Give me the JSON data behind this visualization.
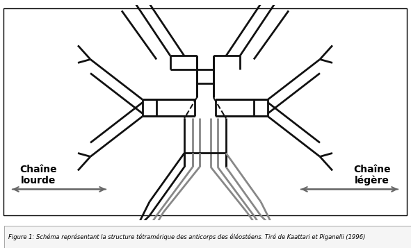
{
  "caption": "Figure 1: Schéma représentant la structure tétramérique des anticorps des éléostéens. Tiré de Kaattari et Piganelli (1996)",
  "label_left": "Chaîne\nlourde",
  "label_right": "Chaîne\nlégère",
  "line_color": "#111111",
  "gray_color": "#888888",
  "bg_color": "#ffffff",
  "fig_width": 5.91,
  "fig_height": 3.57,
  "dpi": 100
}
